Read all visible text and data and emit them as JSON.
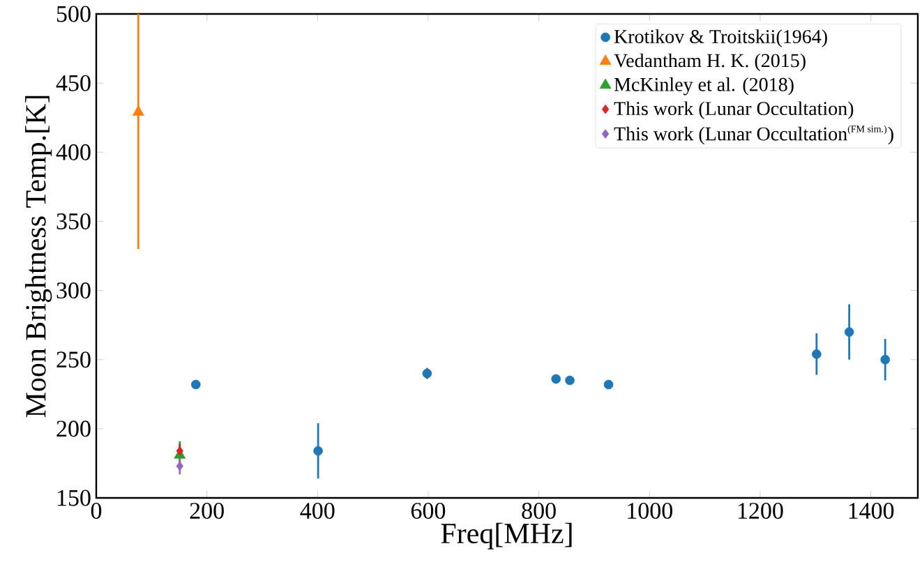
{
  "chart_data": {
    "type": "scatter",
    "xlabel": "Freq[MHz]",
    "ylabel": "Moon Brightness Temp.[K]",
    "xlim": [
      0,
      1485
    ],
    "ylim": [
      150,
      500
    ],
    "xticks": [
      0,
      200,
      400,
      600,
      800,
      1000,
      1200,
      1400
    ],
    "yticks": [
      150,
      200,
      250,
      300,
      350,
      400,
      450,
      500
    ],
    "legend": "top right",
    "grid": false,
    "series": [
      {
        "name": "Krotikov & Troitskii(1964)",
        "color": "#1f77b4",
        "marker": "circle",
        "x": [
          180,
          401,
          598,
          831,
          856,
          926,
          1302,
          1361,
          1426
        ],
        "values": [
          232,
          184,
          240,
          236,
          235,
          232,
          254,
          270,
          250
        ],
        "errors": [
          2,
          20,
          4,
          null,
          null,
          null,
          15,
          20,
          15
        ]
      },
      {
        "name": "Vedantham H. K. (2015)",
        "color": "#ff7f0e",
        "marker": "triangle",
        "x": [
          76
        ],
        "values": [
          429
        ],
        "errors": [
          [
            330,
            500
          ]
        ]
      },
      {
        "name": "McKinley et al. (2018)",
        "color": "#2ca02c",
        "marker": "triangle",
        "x": [
          151
        ],
        "values": [
          181
        ],
        "errors": [
          10
        ]
      },
      {
        "name": "This work (Lunar Occultation)",
        "color": "#d62728",
        "marker": "diamond",
        "x": [
          151
        ],
        "values": [
          184
        ],
        "errors": [
          5
        ]
      },
      {
        "name": "\\mbox{This work (Lunar Occultation}^{\\mbox{\\scriptsize (FM sim.)}}\\mbox{)}",
        "color": "#9467bd",
        "marker": "diamond",
        "x": [
          151
        ],
        "values": [
          173
        ],
        "errors": [
          6
        ]
      }
    ]
  }
}
